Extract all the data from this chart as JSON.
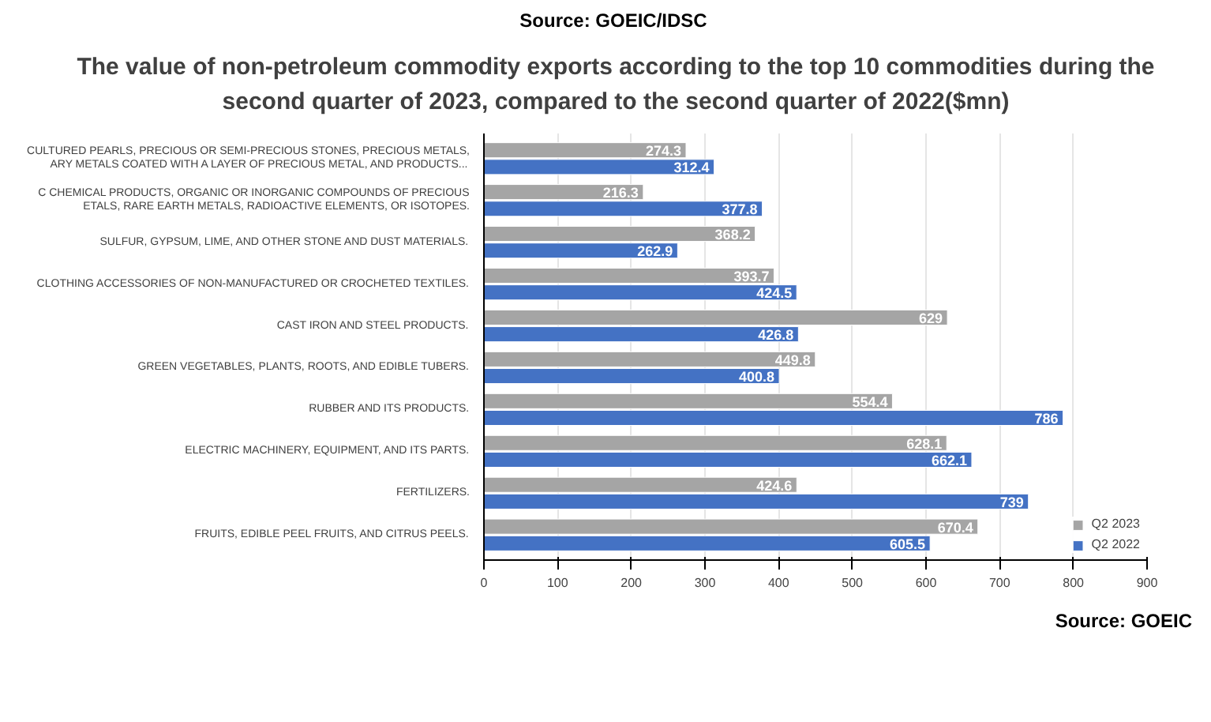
{
  "chart_data": {
    "type": "bar",
    "orientation": "horizontal",
    "title": "The value of non-petroleum commodity exports according to the top 10 commodities during the second quarter of 2023, compared to the second quarter of 2022($mn)",
    "categories": [
      "CULTURED PEARLS, PRECIOUS OR SEMI-PRECIOUS STONES, PRECIOUS METALS,\nARY METALS COATED WITH A LAYER OF PRECIOUS METAL, AND PRODUCTS...",
      "C CHEMICAL PRODUCTS, ORGANIC OR INORGANIC COMPOUNDS OF PRECIOUS\nETALS, RARE EARTH METALS, RADIOACTIVE ELEMENTS, OR ISOTOPES.",
      "SULFUR, GYPSUM, LIME, AND OTHER STONE AND DUST MATERIALS.",
      "CLOTHING ACCESSORIES OF NON-MANUFACTURED OR CROCHETED TEXTILES.",
      "CAST IRON AND STEEL PRODUCTS.",
      "GREEN VEGETABLES, PLANTS, ROOTS, AND EDIBLE TUBERS.",
      "RUBBER AND ITS PRODUCTS.",
      "ELECTRIC MACHINERY, EQUIPMENT, AND ITS PARTS.",
      "FERTILIZERS.",
      "FRUITS, EDIBLE PEEL FRUITS, AND CITRUS PEELS."
    ],
    "series": [
      {
        "name": "Q2 2023",
        "color": "#a5a5a5",
        "values": [
          274.3,
          216.3,
          368.2,
          393.7,
          629,
          449.8,
          554.4,
          628.1,
          424.6,
          670.4
        ]
      },
      {
        "name": "Q2 2022",
        "color": "#4472c4",
        "values": [
          312.4,
          377.8,
          262.9,
          424.5,
          426.8,
          400.8,
          786,
          662.1,
          739,
          605.5
        ]
      }
    ],
    "xlim": [
      0,
      900
    ],
    "xticks": [
      0,
      100,
      200,
      300,
      400,
      500,
      600,
      700,
      800,
      900
    ],
    "grid": "x",
    "data_labels": true,
    "legend": "bottom",
    "annotations": [
      "Source: GOEIC/IDSC",
      "Source: GOEIC"
    ]
  }
}
